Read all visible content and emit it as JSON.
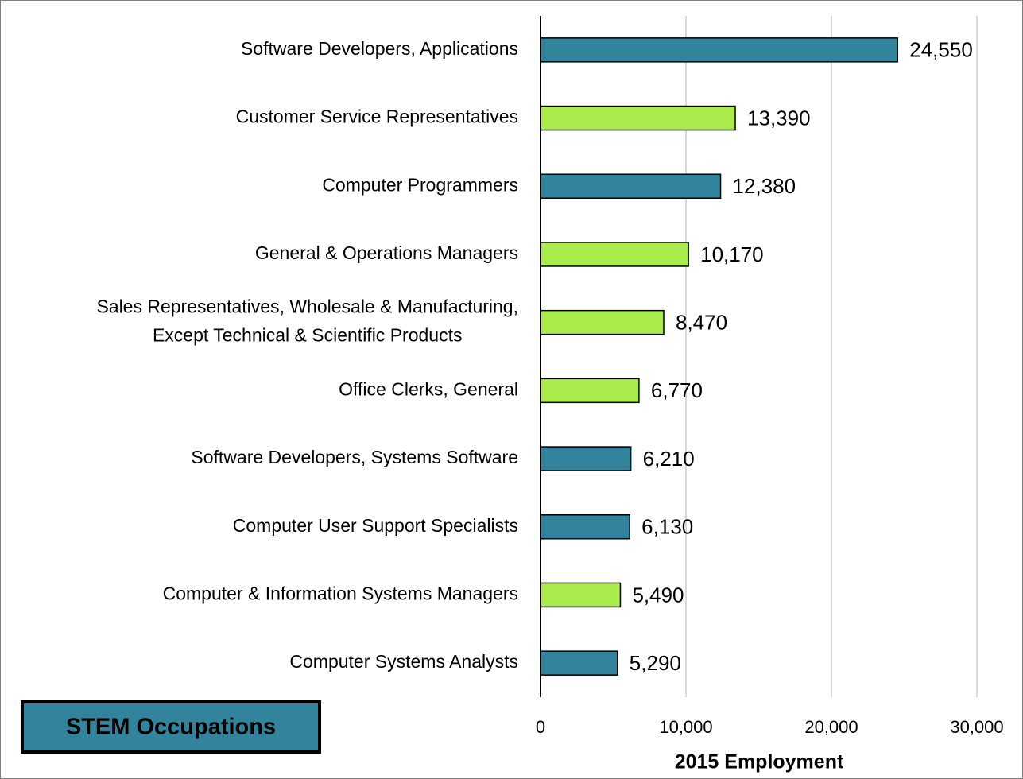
{
  "chart_data": {
    "type": "hbar",
    "categories": [
      "Software Developers, Applications",
      "Customer Service Representatives",
      "Computer Programmers",
      "General & Operations Managers",
      "Sales Representatives, Wholesale & Manufacturing,\nExcept Technical & Scientific Products",
      "Office Clerks, General",
      "Software Developers, Systems Software",
      "Computer User Support Specialists",
      "Computer & Information Systems Managers",
      "Computer Systems Analysts"
    ],
    "values": [
      24550,
      13390,
      12380,
      10170,
      8470,
      6770,
      6210,
      6130,
      5490,
      5290
    ],
    "value_labels": [
      "24,550",
      "13,390",
      "12,380",
      "10,170",
      "8,470",
      "6,770",
      "6,210",
      "6,130",
      "5,490",
      "5,290"
    ],
    "colors": [
      "#31849b",
      "#a9eb4a",
      "#31849b",
      "#a9eb4a",
      "#a9eb4a",
      "#a9eb4a",
      "#31849b",
      "#31849b",
      "#a9eb4a",
      "#31849b"
    ],
    "xlim": [
      0,
      30000
    ],
    "xticks": [
      0,
      {
        "value": 10000,
        "label": "10,000"
      },
      {
        "value": 20000,
        "label": "20,000"
      },
      {
        "value": 30000,
        "label": "30,000"
      }
    ],
    "xlabel": "2015 Employment",
    "grid": true,
    "legend": {
      "label": "STEM Occupations",
      "color": "#31849b",
      "position": "lower left"
    }
  }
}
